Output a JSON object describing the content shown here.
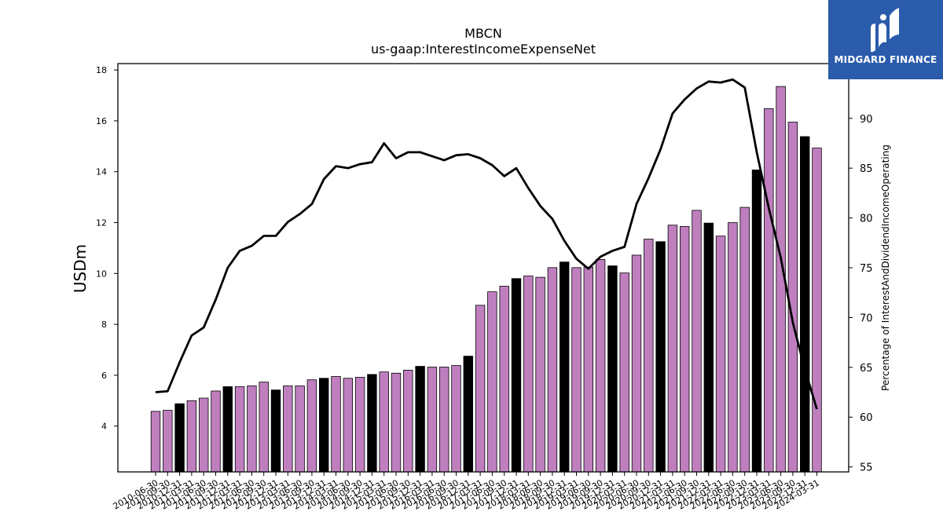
{
  "logo": {
    "text": "MIDGARD FINANCE",
    "colors": {
      "background": "#2b5bab",
      "mark": "#ffffff"
    }
  },
  "chart_data": {
    "type": "bar",
    "title": "MBCN",
    "subtitle": "us-gaap:InterestIncomeExpenseNet",
    "ylabel": "USDm",
    "ylabel_right": "Percentage of InterestAndDividendIncomeOperating",
    "ylim": [
      2.2,
      18.25
    ],
    "ylim_right": [
      54.5,
      95.5
    ],
    "yticks": [
      4,
      6,
      8,
      10,
      12,
      14,
      16,
      18
    ],
    "yticks_right": [
      55,
      60,
      65,
      70,
      75,
      80,
      85,
      90
    ],
    "grid": false,
    "colors": {
      "bar": "#bf7fbf",
      "bar_q4": "#000000",
      "line": "#000000"
    },
    "categories": [
      "2010-06-30",
      "2010-09-30",
      "2010-12-31",
      "2011-03-31",
      "2011-06-30",
      "2011-09-30",
      "2011-12-31",
      "2012-03-31",
      "2012-06-30",
      "2012-09-30",
      "2012-12-31",
      "2013-03-31",
      "2013-06-30",
      "2013-09-30",
      "2013-12-31",
      "2014-03-31",
      "2014-06-30",
      "2014-09-30",
      "2014-12-31",
      "2015-03-31",
      "2015-06-30",
      "2015-09-30",
      "2015-12-31",
      "2016-03-31",
      "2016-06-30",
      "2016-09-30",
      "2016-12-31",
      "2017-03-31",
      "2017-06-30",
      "2017-09-30",
      "2017-12-31",
      "2018-03-31",
      "2018-06-30",
      "2018-09-30",
      "2018-12-31",
      "2019-03-31",
      "2019-06-30",
      "2019-09-30",
      "2019-12-31",
      "2020-03-31",
      "2020-06-30",
      "2020-09-30",
      "2020-12-31",
      "2021-03-31",
      "2021-06-30",
      "2021-09-30",
      "2021-12-31",
      "2022-03-31",
      "2022-06-30",
      "2022-09-30",
      "2022-12-31",
      "2023-03-31",
      "2023-06-30",
      "2023-09-30",
      "2023-12-31",
      "2024-03-31"
    ],
    "xtick_labels": [
      "2010-06-30",
      "2010-09-30",
      "2010-12-31",
      "2011-03-31",
      "2011-06-30",
      "2011-09-30",
      "2011-12-31",
      "2012-03-31",
      "2012-06-30",
      "2012-09-30",
      "2012-12-31",
      "2013-03-31",
      "2013-06-30",
      "2013-09-30",
      "2013-12-31",
      "2014-03-31",
      "2014-06-30",
      "2014-09-30",
      "2014-12-31",
      "2015-03-31",
      "2015-06-30",
      "2015-09-30",
      "2015-12-31",
      "2016-03-31",
      "2016-06-30",
      "2016-09-30",
      "2016-12-31",
      "2017-03-31",
      "2017-06-30",
      "2017-09-30",
      "2017-12-31",
      "2018-03-31",
      "2018-06-30",
      "2018-09-30",
      "2018-12-31",
      "2019-03-31",
      "2019-06-30",
      "2019-09-30",
      "2019-12-31",
      "2020-03-31",
      "2020-06-30",
      "2020-09-30",
      "2020-12-31",
      "2021-03-31",
      "2021-06-30",
      "2021-09-30",
      "2021-12-31",
      "2022-03-31",
      "2022-06-30",
      "2022-09-30",
      "2022-12-31",
      "2023-03-31",
      "2023-06-30",
      "2023-09-30",
      "2023-12-31",
      "2024-03-31"
    ],
    "series": [
      {
        "type": "bar",
        "axis": "left",
        "values": [
          4.58,
          4.62,
          4.88,
          5.0,
          5.1,
          5.38,
          5.55,
          5.55,
          5.58,
          5.73,
          5.42,
          5.58,
          5.58,
          5.82,
          5.88,
          5.95,
          5.88,
          5.92,
          6.03,
          6.13,
          6.08,
          6.2,
          6.35,
          6.32,
          6.32,
          6.38,
          6.75,
          8.75,
          9.28,
          9.5,
          9.8,
          9.9,
          9.85,
          10.23,
          10.45,
          10.23,
          10.25,
          10.55,
          10.3,
          10.02,
          10.72,
          11.35,
          11.25,
          11.9,
          11.85,
          12.48,
          11.98,
          11.47,
          12.0,
          12.6,
          14.07,
          16.48,
          17.35,
          15.95,
          15.38,
          14.93
        ]
      },
      {
        "type": "line",
        "axis": "right",
        "values": [
          62.5,
          62.6,
          65.5,
          68.2,
          69.0,
          71.8,
          75.0,
          76.7,
          77.2,
          78.2,
          78.2,
          79.6,
          80.4,
          81.4,
          83.9,
          85.2,
          85.0,
          85.4,
          85.6,
          87.5,
          86.0,
          86.6,
          86.6,
          86.2,
          85.8,
          86.3,
          86.4,
          86.0,
          85.3,
          84.2,
          85.0,
          83.0,
          81.2,
          79.9,
          77.7,
          75.9,
          74.9,
          76.1,
          76.7,
          77.1,
          81.4,
          84.0,
          86.9,
          90.5,
          91.9,
          93.0,
          93.7,
          93.6,
          93.9,
          93.1,
          86.6,
          81.0,
          76.0,
          69.5,
          64.8,
          60.8
        ]
      }
    ]
  }
}
